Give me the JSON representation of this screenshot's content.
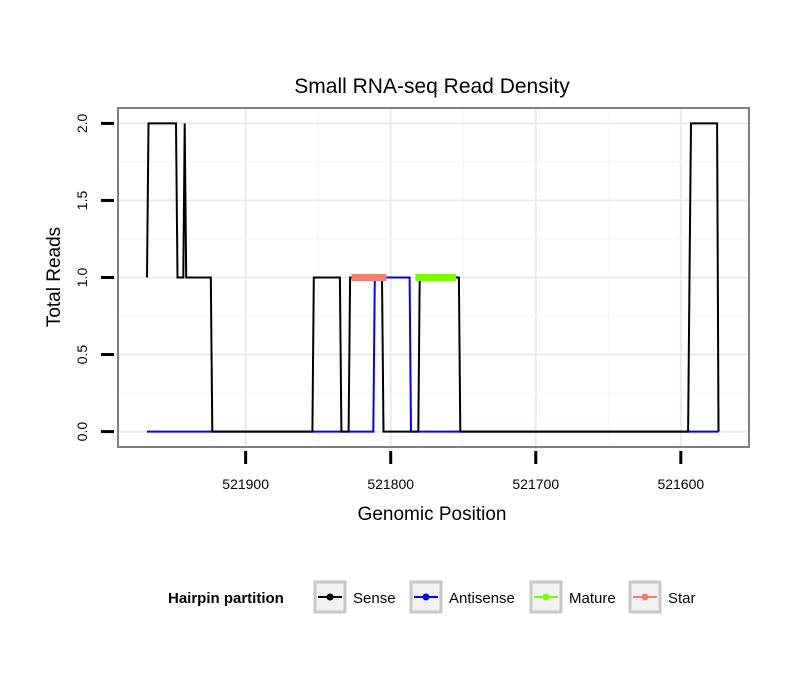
{
  "chart_data": {
    "type": "line",
    "title": "Small RNA-seq Read Density",
    "xlabel": "Genomic Position",
    "ylabel": "Total Reads",
    "xlim": [
      521988,
      521553
    ],
    "ylim": [
      -0.1,
      2.1
    ],
    "x_reversed": true,
    "grid": true,
    "x_ticks": [
      521900,
      521800,
      521700,
      521600
    ],
    "x_tick_labels": [
      "521900",
      "521800",
      "521700",
      "521600"
    ],
    "y_ticks": [
      0,
      0.5,
      1,
      1.5,
      2
    ],
    "y_tick_labels": [
      "0.0",
      "0.5",
      "1.0",
      "1.5",
      "2.0"
    ],
    "legend": {
      "title": "Hairpin partition",
      "position": "bottom",
      "entries": [
        {
          "label": "Sense",
          "color": "#000000"
        },
        {
          "label": "Antisense",
          "color": "#0000ff"
        },
        {
          "label": "Mature",
          "color": "#7cfc00"
        },
        {
          "label": "Star",
          "color": "#f08070"
        }
      ]
    },
    "series": [
      {
        "name": "Sense",
        "color": "#000000",
        "points": [
          [
            521968,
            1
          ],
          [
            521967,
            2
          ],
          [
            521948,
            2
          ],
          [
            521947,
            1
          ],
          [
            521943,
            1
          ],
          [
            521942,
            2
          ],
          [
            521941,
            1
          ],
          [
            521924,
            1
          ],
          [
            521923,
            0
          ],
          [
            521854,
            0
          ],
          [
            521853,
            1
          ],
          [
            521835,
            1
          ],
          [
            521834,
            0
          ],
          [
            521829,
            0
          ],
          [
            521828,
            1
          ],
          [
            521806,
            1
          ],
          [
            521805,
            0
          ],
          [
            521781,
            0
          ],
          [
            521780,
            1
          ],
          [
            521753,
            1
          ],
          [
            521752,
            0
          ],
          [
            521595,
            0
          ],
          [
            521594,
            1
          ],
          [
            521593,
            2
          ],
          [
            521575,
            2
          ],
          [
            521574,
            0
          ]
        ]
      },
      {
        "name": "Antisense",
        "color": "#0000ff",
        "points": [
          [
            521968,
            0
          ],
          [
            521812,
            0
          ],
          [
            521811,
            1
          ],
          [
            521787,
            1
          ],
          [
            521786,
            0
          ],
          [
            521574,
            0
          ]
        ]
      },
      {
        "name": "Mature",
        "color": "#7cfc00",
        "points": [
          [
            521783,
            1
          ],
          [
            521755,
            1
          ]
        ]
      },
      {
        "name": "Star",
        "color": "#f08070",
        "points": [
          [
            521827,
            1
          ],
          [
            521803,
            1
          ]
        ]
      }
    ]
  }
}
